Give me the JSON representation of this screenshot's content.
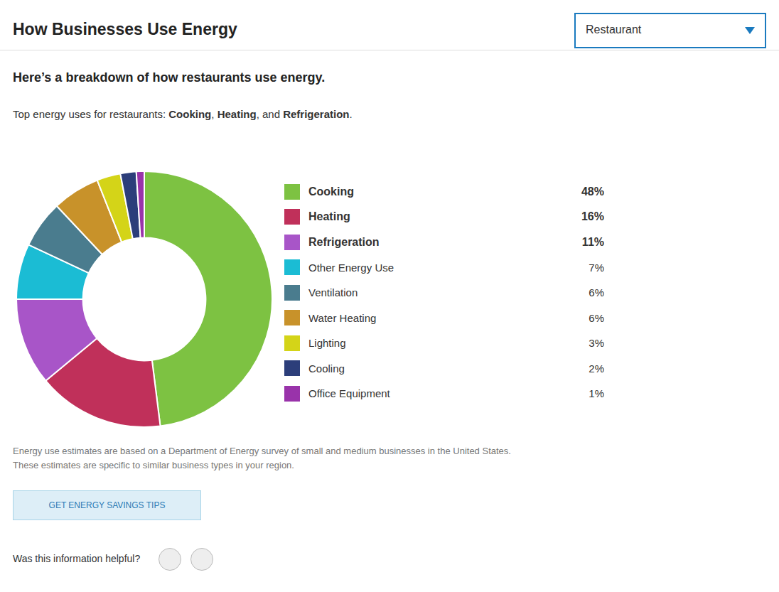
{
  "chart_data": {
    "type": "doughnut",
    "title": "How Businesses Use Energy",
    "subtitle": "Here’s a breakdown of how restaurants use energy.",
    "dropdown_label": "Restaurant",
    "highlight_segments": [
      "Top energy uses for restaurants: ",
      "Cooking",
      ", ",
      "Heating",
      ", and ",
      "Refrigeration",
      "."
    ],
    "categories": [
      "Cooking",
      "Heating",
      "Refrigeration",
      "Other Energy Use",
      "Ventilation",
      "Water Heating",
      "Lighting",
      "Cooling",
      "Office Equipment"
    ],
    "values": [
      48,
      16,
      11,
      7,
      6,
      6,
      3,
      2,
      1
    ],
    "value_labels": [
      "48%",
      "16%",
      "11%",
      "7%",
      "6%",
      "6%",
      "3%",
      "2%",
      "1%"
    ],
    "colors": [
      "#7dc242",
      "#c0305a",
      "#a855c8",
      "#1bbcd4",
      "#4a7c8e",
      "#c8922a",
      "#d4d418",
      "#2c3e7a",
      "#9933aa"
    ],
    "legend": "right",
    "footnotes": [
      "Energy use estimates are based on a Department of Energy survey of small and medium businesses in the United States.",
      "These estimates are specific to similar business types in your region."
    ],
    "button_text": "GET ENERGY SAVINGS TIPS",
    "feedback_text": "Was this information helpful?"
  }
}
